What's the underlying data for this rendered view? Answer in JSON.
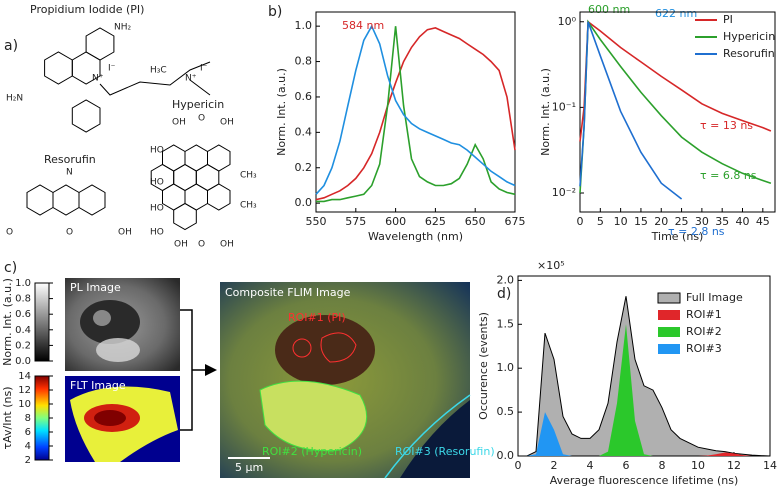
{
  "panels": {
    "a": "a)",
    "b": "b)",
    "c": "c)",
    "d": "d)"
  },
  "molecules": [
    {
      "name": "Propidium Iodide (PI)",
      "atoms": [
        "NH₂",
        "H₂N",
        "N⁺",
        "I⁻",
        "H₃C",
        "N⁺",
        "I⁻"
      ]
    },
    {
      "name": "Hypericin",
      "atoms": [
        "OH",
        "O",
        "OH",
        "HO",
        "HO",
        "CH₃",
        "HO",
        "CH₃",
        "HO",
        "OH",
        "O",
        "OH"
      ]
    },
    {
      "name": "Resorufin",
      "atoms": [
        "N",
        "O",
        "O",
        "OH"
      ]
    }
  ],
  "images": {
    "pl": {
      "title": "PL Image",
      "colorbar": {
        "label": "Norm. Int. (a.u.)",
        "range": [
          0,
          1
        ],
        "ticks": [
          {
            "value": 0,
            "label": "0.0"
          },
          {
            "value": 0.2,
            "label": "0.2"
          },
          {
            "value": 0.4,
            "label": "0.4"
          },
          {
            "value": 0.6,
            "label": "0.6"
          },
          {
            "value": 0.8,
            "label": "0.8"
          },
          {
            "value": 1,
            "label": "1.0"
          }
        ]
      }
    },
    "flt": {
      "title": "FLT Image",
      "colorbar": {
        "label": "τAv/Int (ns)",
        "range": [
          2,
          14
        ],
        "ticks": [
          2,
          4,
          6,
          8,
          10,
          12,
          14
        ]
      }
    },
    "composite": {
      "title": "Composite FLIM Image",
      "rois": [
        "ROI#1 (PI)",
        "ROI#2 (Hypericin)",
        "ROI#3 (Resorufin)"
      ],
      "scale_bar": "5 µm"
    }
  },
  "chart_data": [
    {
      "type": "line",
      "xlabel": "Wavelength (nm)",
      "ylabel": "Norm. Int. (a.u.)",
      "annotations": [
        "584 nm",
        "600 nm",
        "622 nm"
      ],
      "x": [
        550,
        555,
        560,
        565,
        570,
        575,
        580,
        585,
        590,
        595,
        600,
        605,
        610,
        615,
        620,
        625,
        630,
        635,
        640,
        645,
        650,
        655,
        660,
        665,
        670,
        675
      ],
      "series": [
        {
          "color": "#d62728",
          "values": [
            0.02,
            0.03,
            0.05,
            0.07,
            0.1,
            0.14,
            0.2,
            0.28,
            0.4,
            0.55,
            0.68,
            0.8,
            0.88,
            0.94,
            0.98,
            0.99,
            0.97,
            0.95,
            0.93,
            0.9,
            0.87,
            0.84,
            0.8,
            0.75,
            0.6,
            0.3
          ]
        },
        {
          "color": "#2ca02c",
          "values": [
            0.01,
            0.01,
            0.02,
            0.02,
            0.03,
            0.04,
            0.05,
            0.1,
            0.22,
            0.55,
            1.0,
            0.55,
            0.25,
            0.15,
            0.12,
            0.1,
            0.1,
            0.11,
            0.14,
            0.22,
            0.33,
            0.25,
            0.12,
            0.08,
            0.06,
            0.05
          ]
        },
        {
          "color": "#1f8fe0",
          "values": [
            0.05,
            0.1,
            0.2,
            0.35,
            0.55,
            0.75,
            0.92,
            1.0,
            0.9,
            0.72,
            0.58,
            0.5,
            0.45,
            0.42,
            0.4,
            0.38,
            0.36,
            0.34,
            0.33,
            0.3,
            0.26,
            0.22,
            0.18,
            0.15,
            0.12,
            0.1
          ]
        }
      ],
      "xlim": [
        550,
        675
      ],
      "xticks": [
        550,
        575,
        600,
        625,
        650,
        675
      ],
      "ylim": [
        -0.05,
        1.08
      ],
      "yticks": [
        {
          "value": 0,
          "label": "0.0"
        },
        {
          "value": 0.2,
          "label": "0.2"
        },
        {
          "value": 0.4,
          "label": "0.4"
        },
        {
          "value": 0.6,
          "label": "0.6"
        },
        {
          "value": 0.8,
          "label": "0.8"
        },
        {
          "value": 1,
          "label": "1.0"
        }
      ]
    },
    {
      "type": "line",
      "xlabel": "Time (ns)",
      "ylabel": "Norm. Int. (a.u.)",
      "log_y": true,
      "legend": "upper right",
      "annotations": [
        "τ = 13 ns",
        "τ = 6.8 ns",
        "τ = 2.8 ns"
      ],
      "x": [
        0,
        1,
        2,
        5,
        10,
        15,
        20,
        25,
        30,
        35,
        40,
        45,
        47
      ],
      "series": [
        {
          "name": "PI",
          "color": "#d62728",
          "values": [
            0.04,
            0.1,
            1.0,
            0.78,
            0.5,
            0.34,
            0.23,
            0.16,
            0.11,
            0.085,
            0.07,
            0.058,
            0.053
          ]
        },
        {
          "name": "Hypericin",
          "color": "#2ca02c",
          "values": [
            0.01,
            0.06,
            1.0,
            0.62,
            0.3,
            0.15,
            0.08,
            0.045,
            0.03,
            0.022,
            0.017,
            0.014,
            0.013
          ]
        },
        {
          "name": "Resorufin",
          "color": "#1f6fd0",
          "values": [
            0.012,
            0.06,
            1.0,
            0.4,
            0.09,
            0.03,
            0.013,
            0.0085,
            null,
            null,
            null,
            null,
            null
          ]
        }
      ],
      "xlim": [
        0,
        48
      ],
      "xticks": [
        0,
        5,
        10,
        15,
        20,
        25,
        30,
        35,
        40,
        45
      ],
      "ylim": [
        0.006,
        1.3
      ],
      "yticks": [
        {
          "value": 0.01,
          "label": "10⁻²"
        },
        {
          "value": 0.1,
          "label": "10⁻¹"
        },
        {
          "value": 1,
          "label": "10⁰"
        }
      ]
    },
    {
      "type": "area",
      "xlabel": "Average fluorescence lifetime (ns)",
      "ylabel": "Occurence (events)",
      "legend": "upper right",
      "annotations": [
        "×10⁵"
      ],
      "x": [
        0,
        0.5,
        1,
        1.5,
        2,
        2.5,
        3,
        3.5,
        4,
        4.5,
        5,
        5.5,
        6,
        6.5,
        7,
        7.5,
        8,
        8.5,
        9,
        9.5,
        10,
        10.5,
        11,
        11.5,
        12,
        12.5,
        13,
        13.5,
        14
      ],
      "series": [
        {
          "name": "Full Image",
          "color": "#b0b0b0",
          "values": [
            0,
            0,
            0.05,
            1.4,
            1.1,
            0.45,
            0.25,
            0.2,
            0.2,
            0.3,
            0.6,
            1.3,
            1.82,
            1.1,
            0.8,
            0.75,
            0.55,
            0.3,
            0.2,
            0.15,
            0.1,
            0.08,
            0.06,
            0.05,
            0.03,
            0.02,
            0.01,
            0.005,
            0
          ]
        },
        {
          "name": "ROI#1",
          "color": "#e0262a",
          "values": [
            0,
            0,
            0,
            0,
            0,
            0,
            0,
            0,
            0,
            0,
            0,
            0,
            0,
            0,
            0,
            0,
            0,
            0,
            0,
            0,
            0,
            0.005,
            0.02,
            0.04,
            0.03,
            0.01,
            0,
            0,
            0
          ]
        },
        {
          "name": "ROI#2",
          "color": "#2bc82b",
          "values": [
            0,
            0,
            0,
            0,
            0,
            0,
            0,
            0,
            0,
            0,
            0.05,
            0.6,
            1.5,
            0.4,
            0.02,
            0,
            0,
            0,
            0,
            0,
            0,
            0,
            0,
            0,
            0,
            0,
            0,
            0,
            0
          ]
        },
        {
          "name": "ROI#3",
          "color": "#2196f3",
          "values": [
            0,
            0,
            0.02,
            0.5,
            0.3,
            0.02,
            0,
            0,
            0,
            0,
            0,
            0,
            0,
            0,
            0,
            0,
            0,
            0,
            0,
            0,
            0,
            0,
            0,
            0,
            0,
            0,
            0,
            0,
            0
          ]
        }
      ],
      "xlim": [
        0,
        14
      ],
      "xticks": [
        0,
        2,
        4,
        6,
        8,
        10,
        12,
        14
      ],
      "ylim": [
        0,
        2.05
      ],
      "yticks": [
        {
          "value": 0,
          "label": "0.0"
        },
        {
          "value": 0.5,
          "label": "0.5"
        },
        {
          "value": 1,
          "label": "1.0"
        },
        {
          "value": 1.5,
          "label": "1.5"
        },
        {
          "value": 2,
          "label": "2.0"
        }
      ]
    }
  ]
}
